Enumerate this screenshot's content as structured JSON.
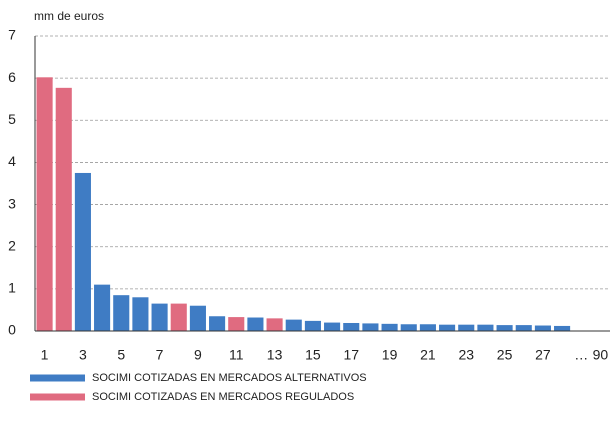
{
  "chart_data": {
    "type": "bar",
    "y_label": "mm de euros",
    "categories": [
      "1",
      null,
      "3",
      null,
      "5",
      null,
      "7",
      null,
      "9",
      null,
      "11",
      null,
      "13",
      null,
      "15",
      null,
      "17",
      null,
      "19",
      null,
      "21",
      null,
      "23",
      null,
      "25",
      null,
      "27",
      null,
      "…",
      "90"
    ],
    "series": [
      {
        "name": "SOCIMI COTIZADAS EN MERCADOS ALTERNATIVOS",
        "color": "#3f7cc4",
        "values": [
          null,
          null,
          3.75,
          1.1,
          0.85,
          0.8,
          0.65,
          null,
          0.6,
          0.35,
          null,
          0.32,
          null,
          0.27,
          0.24,
          0.2,
          0.19,
          0.18,
          0.17,
          0.16,
          0.16,
          0.15,
          0.15,
          0.15,
          0.14,
          0.14,
          0.13,
          0.12,
          null,
          null
        ]
      },
      {
        "name": "SOCIMI COTIZADAS EN MERCADOS REGULADOS",
        "color": "#e06b80",
        "values": [
          6.02,
          5.77,
          null,
          null,
          null,
          null,
          null,
          0.65,
          null,
          null,
          0.33,
          null,
          0.3,
          null,
          null,
          null,
          null,
          null,
          null,
          null,
          null,
          null,
          null,
          null,
          null,
          null,
          null,
          null,
          null,
          null
        ]
      }
    ],
    "ylim": [
      0,
      7
    ],
    "yticks": [
      0,
      1,
      2,
      3,
      4,
      5,
      6,
      7
    ],
    "grid": true
  }
}
